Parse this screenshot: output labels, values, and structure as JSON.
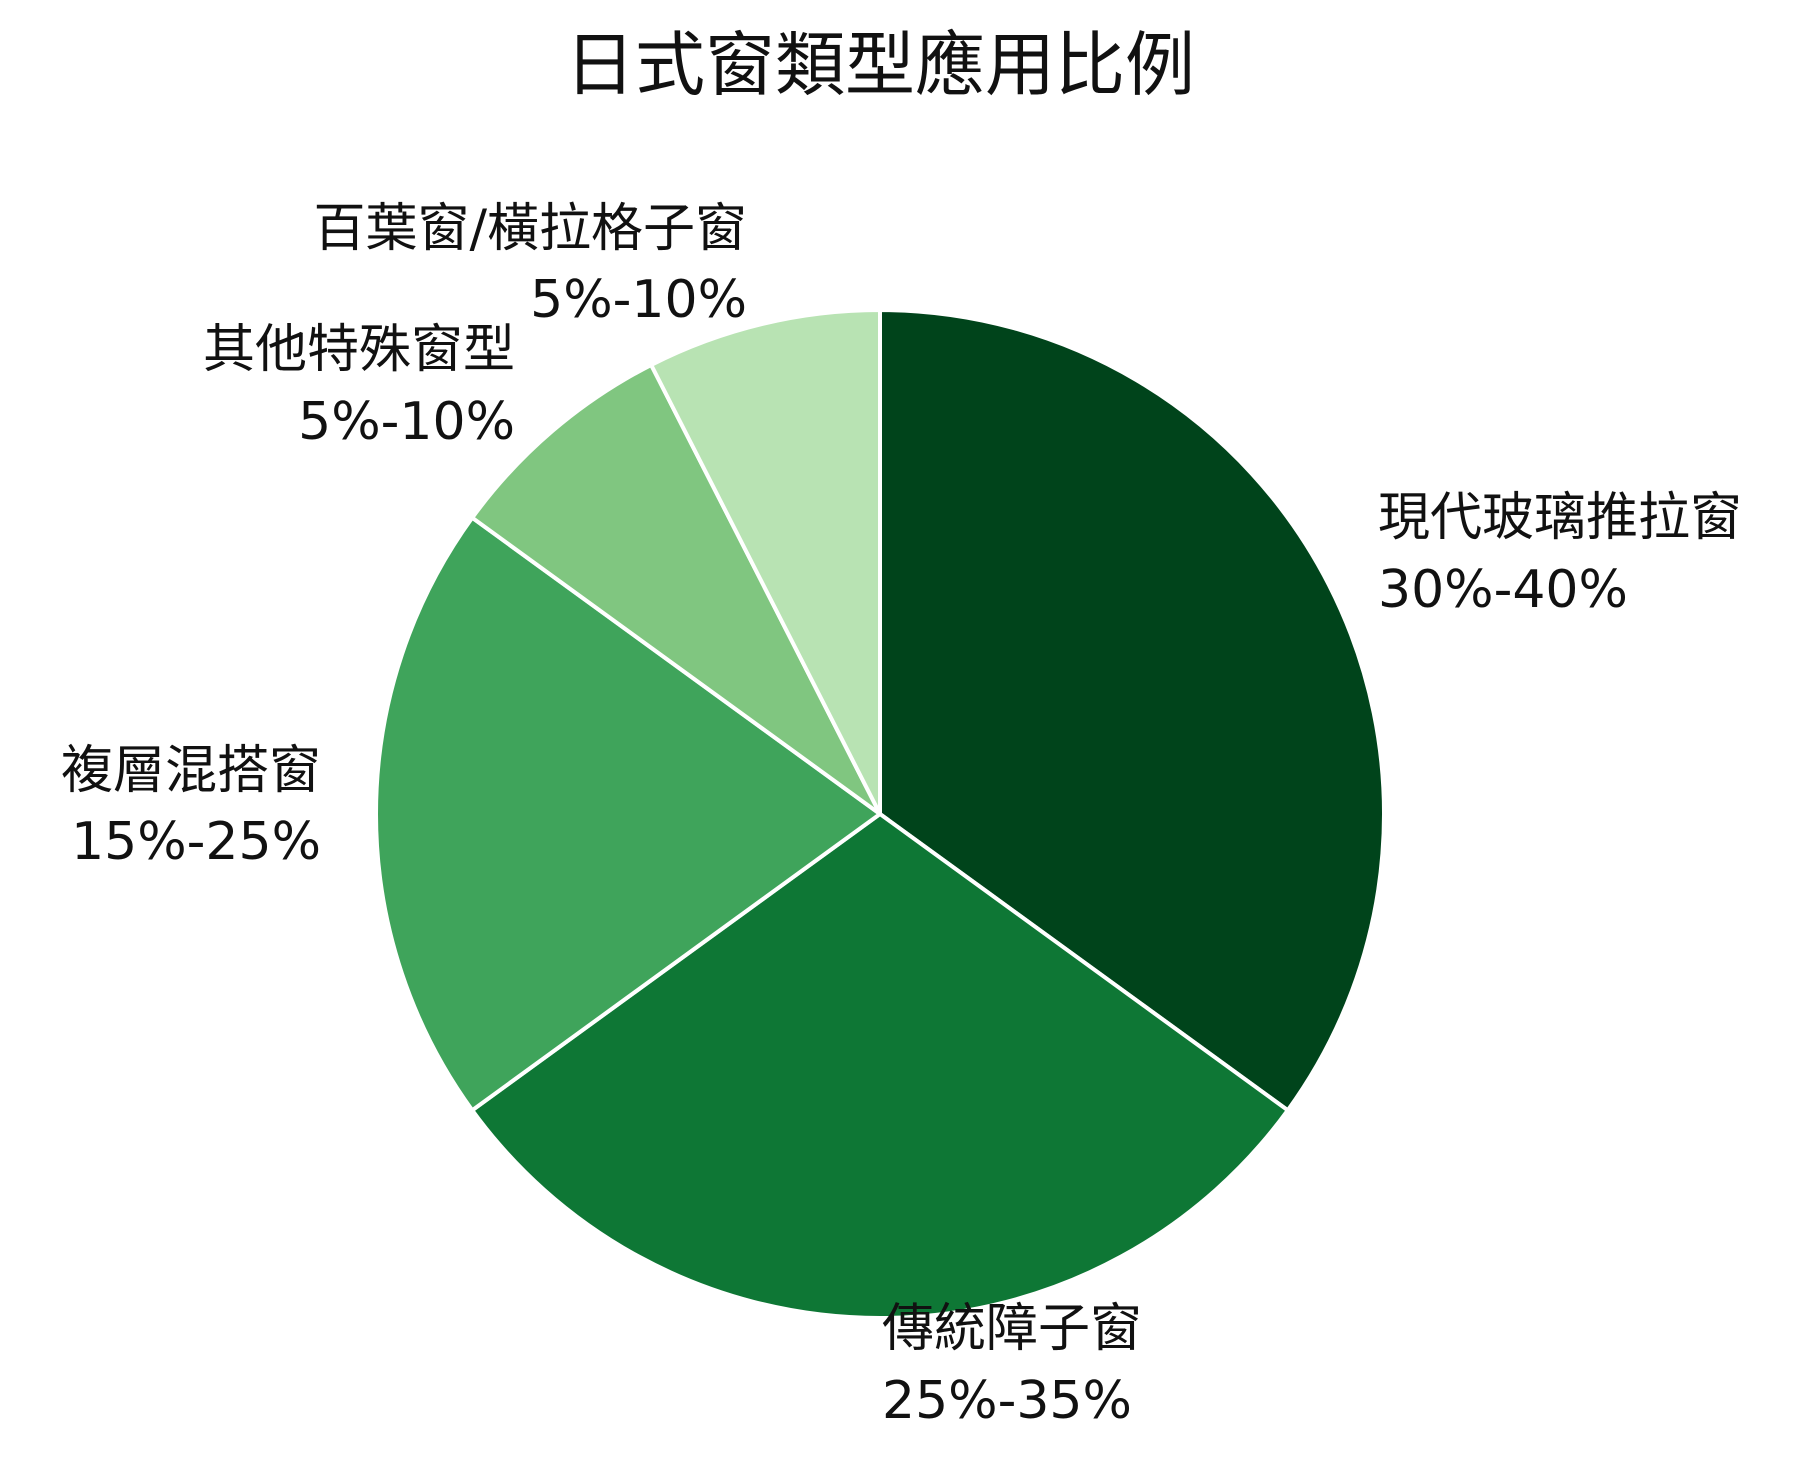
{
  "chart_data": {
    "type": "pie",
    "title": "日式窗類型應用比例",
    "categories": [
      "現代玻璃推拉窗",
      "傳統障子窗",
      "複層混搭窗",
      "其他特殊窗型",
      "百葉窗/橫拉格子窗"
    ],
    "values": [
      35,
      30,
      20,
      7.5,
      7.5
    ],
    "value_labels": [
      "30%-40%",
      "25%-35%",
      "15%-25%",
      "5%-10%",
      "5%-10%"
    ],
    "colors": [
      "#00441b",
      "#0e7735",
      "#3fa45b",
      "#80c680",
      "#b8e3b3"
    ]
  }
}
